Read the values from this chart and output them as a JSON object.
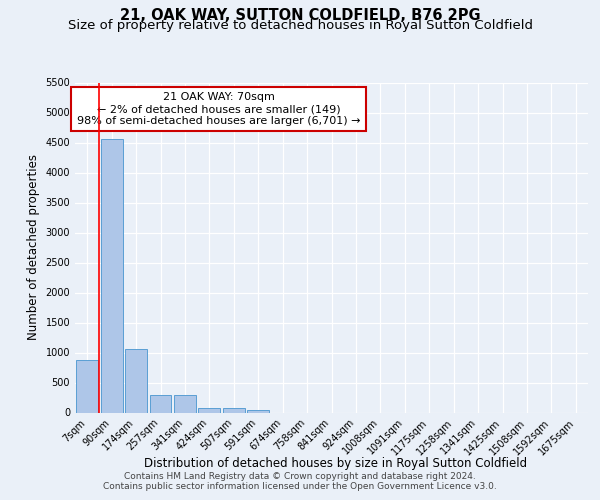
{
  "title_line1": "21, OAK WAY, SUTTON COLDFIELD, B76 2PG",
  "title_line2": "Size of property relative to detached houses in Royal Sutton Coldfield",
  "xlabel": "Distribution of detached houses by size in Royal Sutton Coldfield",
  "ylabel": "Number of detached properties",
  "footer_line1": "Contains HM Land Registry data © Crown copyright and database right 2024.",
  "footer_line2": "Contains public sector information licensed under the Open Government Licence v3.0.",
  "annotation_line1": "21 OAK WAY: 70sqm",
  "annotation_line2": "← 2% of detached houses are smaller (149)",
  "annotation_line3": "98% of semi-detached houses are larger (6,701) →",
  "bar_labels": [
    "7sqm",
    "90sqm",
    "174sqm",
    "257sqm",
    "341sqm",
    "424sqm",
    "507sqm",
    "591sqm",
    "674sqm",
    "758sqm",
    "841sqm",
    "924sqm",
    "1008sqm",
    "1091sqm",
    "1175sqm",
    "1258sqm",
    "1341sqm",
    "1425sqm",
    "1508sqm",
    "1592sqm",
    "1675sqm"
  ],
  "bar_values": [
    880,
    4560,
    1060,
    290,
    290,
    80,
    80,
    50,
    0,
    0,
    0,
    0,
    0,
    0,
    0,
    0,
    0,
    0,
    0,
    0,
    0
  ],
  "bar_color": "#aec6e8",
  "bar_edge_color": "#5a9fd4",
  "ylim": [
    0,
    5500
  ],
  "yticks": [
    0,
    500,
    1000,
    1500,
    2000,
    2500,
    3000,
    3500,
    4000,
    4500,
    5000,
    5500
  ],
  "bg_color": "#eaf0f8",
  "plot_bg_color": "#eaf0f8",
  "grid_color": "#ffffff",
  "annotation_box_facecolor": "#ffffff",
  "annotation_box_edgecolor": "#cc0000",
  "red_line_x": 0.5,
  "title_fontsize": 10.5,
  "subtitle_fontsize": 9.5,
  "axis_label_fontsize": 8.5,
  "tick_fontsize": 7,
  "annotation_fontsize": 8,
  "footer_fontsize": 6.5
}
